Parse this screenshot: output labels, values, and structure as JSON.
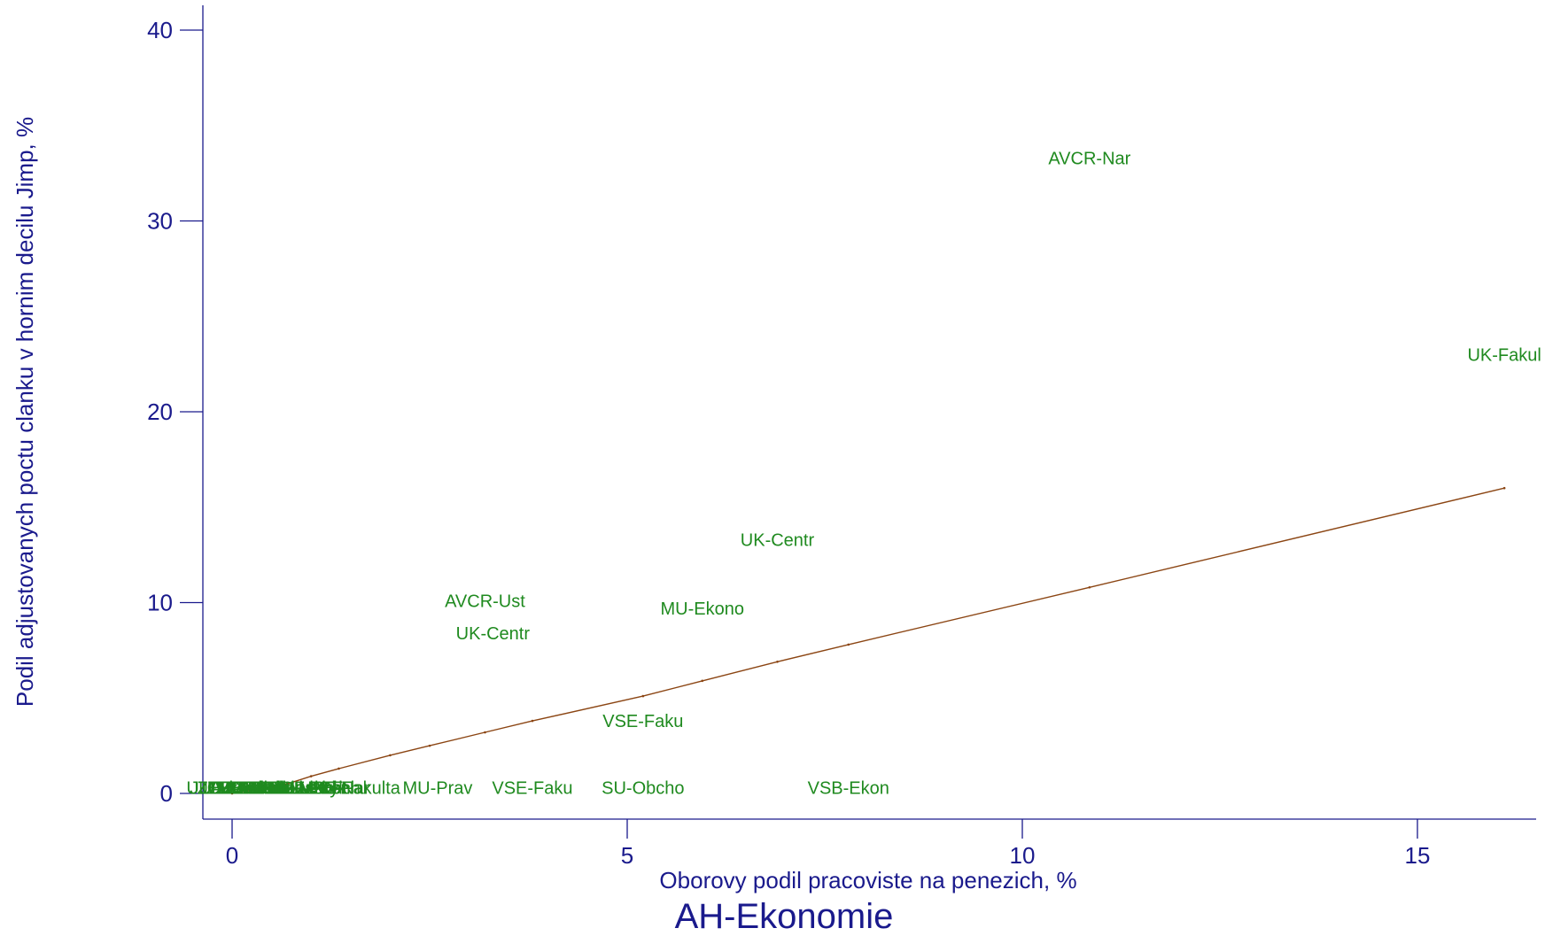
{
  "chart_data": {
    "type": "scatter",
    "title": "AH-Ekonomie",
    "xlabel": "Oborovy podil pracoviste na penezich, %",
    "ylabel": "Podil adjustovanych poctu clanku v hornim decilu Jimp, %",
    "xlim": [
      -0.8,
      16.5
    ],
    "ylim": [
      -0.8,
      41.5
    ],
    "xticks": [
      0,
      5,
      10,
      15
    ],
    "yticks": [
      0,
      10,
      20,
      30,
      40
    ],
    "grid": false,
    "colors": {
      "axis": "#1a1a8c",
      "label": "#1f8a1f",
      "fit": "#8b4513"
    },
    "points": [
      {
        "label": "AVCR-Nar",
        "x": 10.85,
        "y": 33.3
      },
      {
        "label": "UK-Fakul",
        "x": 16.1,
        "y": 23.0
      },
      {
        "label": "UK-Centr",
        "x": 6.9,
        "y": 13.3
      },
      {
        "label": "AVCR-Ust",
        "x": 3.2,
        "y": 10.1
      },
      {
        "label": "MU-Ekono",
        "x": 5.95,
        "y": 9.7
      },
      {
        "label": "UK-Centr",
        "x": 3.3,
        "y": 8.4
      },
      {
        "label": "VSE-Faku",
        "x": 5.2,
        "y": 3.8
      },
      {
        "label": "SU-Obcho",
        "x": 5.2,
        "y": 0.3
      },
      {
        "label": "VSB-Ekon",
        "x": 7.8,
        "y": 0.3
      },
      {
        "label": "VSE-Faku",
        "x": 3.8,
        "y": 0.3
      },
      {
        "label": "VSE-Fakulta",
        "x": 1.5,
        "y": 0.3
      },
      {
        "label": "MU-Prav",
        "x": 2.6,
        "y": 0.3
      },
      {
        "label": "UPOL-Ekon",
        "x": 0.9,
        "y": 0.3
      },
      {
        "label": "VUT-Fakul",
        "x": 0.5,
        "y": 0.3
      },
      {
        "label": "CZU-Provoz",
        "x": 0.3,
        "y": 0.3
      },
      {
        "label": "UTB-Fakul",
        "x": 0.15,
        "y": 0.3
      },
      {
        "label": "ZCU-Fakul",
        "x": 0.1,
        "y": 0.3
      },
      {
        "label": "JU-Ekonom",
        "x": 0.05,
        "y": 0.3
      },
      {
        "label": "TUL-Ekon",
        "x": 0.2,
        "y": 0.3
      },
      {
        "label": "UHK-Fakul",
        "x": 0.35,
        "y": 0.3
      },
      {
        "label": "MENDELU-PEF",
        "x": 0.6,
        "y": 0.3
      },
      {
        "label": "UPa-Fakul",
        "x": 0.8,
        "y": 0.3
      },
      {
        "label": "SLU-Obch",
        "x": 1.1,
        "y": 0.3
      },
      {
        "label": "OU-Ekon",
        "x": 0.45,
        "y": 0.3
      },
      {
        "label": "CVUT-Masaryk",
        "x": 0.7,
        "y": 0.3
      },
      {
        "label": "VSE-Nar",
        "x": 1.3,
        "y": 0.3
      },
      {
        "label": "AVCR-Soc",
        "x": 0.25,
        "y": 0.3
      },
      {
        "label": "UJEP-Fakul",
        "x": 0.02,
        "y": 0.3
      }
    ],
    "fit_line": [
      {
        "x": 0.0,
        "y": 0.0
      },
      {
        "x": 0.3,
        "y": 0.2
      },
      {
        "x": 0.7,
        "y": 0.5
      },
      {
        "x": 1.0,
        "y": 0.9
      },
      {
        "x": 1.35,
        "y": 1.3
      },
      {
        "x": 2.0,
        "y": 2.0
      },
      {
        "x": 2.5,
        "y": 2.5
      },
      {
        "x": 3.2,
        "y": 3.2
      },
      {
        "x": 3.8,
        "y": 3.8
      },
      {
        "x": 5.2,
        "y": 5.1
      },
      {
        "x": 5.95,
        "y": 5.9
      },
      {
        "x": 6.9,
        "y": 6.9
      },
      {
        "x": 7.8,
        "y": 7.8
      },
      {
        "x": 10.85,
        "y": 10.8
      },
      {
        "x": 16.1,
        "y": 16.0
      }
    ]
  }
}
